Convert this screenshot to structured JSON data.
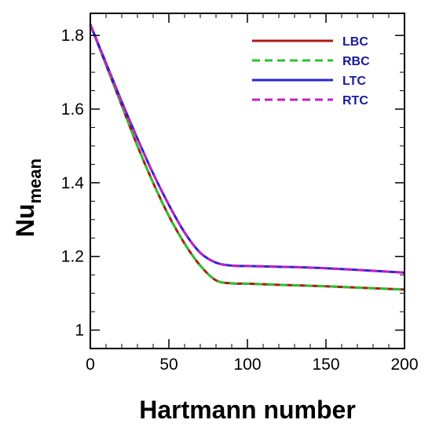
{
  "chart_data": {
    "type": "line",
    "xlabel": "Hartmann number",
    "ylabel_main": "Nu",
    "ylabel_sub": "mean",
    "xlim": [
      0,
      200
    ],
    "ylim": [
      0.95,
      1.86
    ],
    "xticks": [
      0,
      50,
      100,
      150,
      200
    ],
    "xtick_labels": [
      "0",
      "50",
      "100",
      "150",
      "200"
    ],
    "yticks": [
      1,
      1.2,
      1.4,
      1.6,
      1.8
    ],
    "ytick_labels": [
      "1",
      "1.2",
      "1.4",
      "1.6",
      "1.8"
    ],
    "grid": false,
    "legend_position": "top-right",
    "legend_text_color": "#1a1a9c",
    "series": [
      {
        "name": "LBC",
        "color": "#b01818",
        "dash": "solid",
        "x": [
          0,
          10,
          20,
          30,
          40,
          50,
          60,
          70,
          80,
          90,
          100,
          120,
          150,
          200
        ],
        "y": [
          1.83,
          1.72,
          1.61,
          1.5,
          1.4,
          1.31,
          1.235,
          1.175,
          1.135,
          1.127,
          1.126,
          1.123,
          1.119,
          1.11
        ]
      },
      {
        "name": "RBC",
        "color": "#2ec02e",
        "dash": "dashed",
        "x": [
          0,
          10,
          20,
          30,
          40,
          50,
          60,
          70,
          80,
          90,
          100,
          120,
          150,
          200
        ],
        "y": [
          1.83,
          1.72,
          1.61,
          1.5,
          1.4,
          1.31,
          1.235,
          1.175,
          1.135,
          1.127,
          1.126,
          1.123,
          1.119,
          1.11
        ]
      },
      {
        "name": "LTC",
        "color": "#2525dd",
        "dash": "solid",
        "x": [
          0,
          10,
          20,
          30,
          40,
          50,
          60,
          70,
          80,
          90,
          100,
          120,
          150,
          200
        ],
        "y": [
          1.83,
          1.725,
          1.62,
          1.52,
          1.425,
          1.34,
          1.265,
          1.21,
          1.183,
          1.175,
          1.174,
          1.172,
          1.168,
          1.156
        ]
      },
      {
        "name": "RTC",
        "color": "#c020c0",
        "dash": "dashed",
        "x": [
          0,
          10,
          20,
          30,
          40,
          50,
          60,
          70,
          80,
          90,
          100,
          120,
          150,
          200
        ],
        "y": [
          1.83,
          1.725,
          1.62,
          1.52,
          1.425,
          1.34,
          1.265,
          1.21,
          1.183,
          1.175,
          1.174,
          1.172,
          1.168,
          1.156
        ]
      }
    ]
  }
}
